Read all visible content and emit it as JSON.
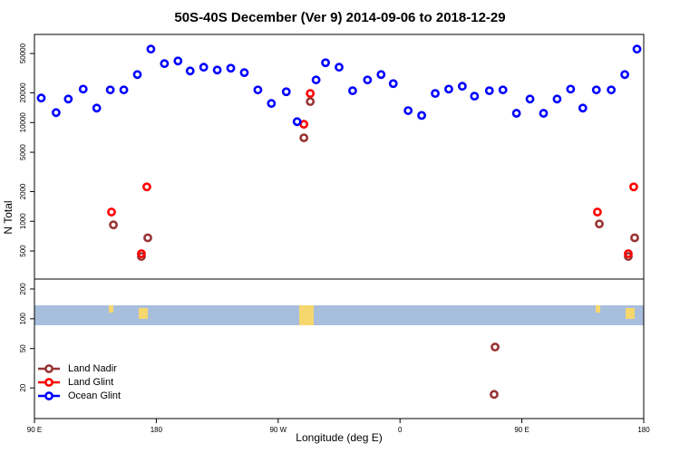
{
  "chart_data": [
    {
      "type": "scatter",
      "title": "50S-40S December (Ver 9)   2014-09-06 to 2018-12-29",
      "ylabel": "N Total",
      "log_y": true,
      "legend": "lower left",
      "xlim": [
        90,
        540
      ],
      "ylim": [
        260,
        78000
      ],
      "yticks": [
        500,
        1000,
        2000,
        5000,
        10000,
        20000,
        50000
      ],
      "series": [
        {
          "name": "Land Nadir",
          "color": "#993333",
          "x": [
            148.3,
            169,
            173.7,
            289,
            293.7,
            507.2,
            528.6,
            533.3
          ],
          "values": [
            920,
            440,
            680,
            7000,
            16300,
            940,
            440,
            680
          ]
        },
        {
          "name": "Land Glint",
          "color": "#ff0000",
          "x": [
            146.9,
            169,
            173,
            289,
            293.7,
            505.8,
            528.6,
            532.6
          ],
          "values": [
            1240,
            470,
            2230,
            9600,
            19700,
            1240,
            470,
            2230
          ]
        },
        {
          "name": "Ocean Glint",
          "color": "#0000ff",
          "x": [
            95,
            106,
            115,
            126,
            136,
            146,
            156,
            166,
            176,
            186,
            196,
            205,
            215,
            225,
            235,
            245,
            255,
            265,
            276,
            284,
            298,
            305,
            315,
            325,
            336,
            346,
            355,
            366,
            376,
            386,
            396,
            406,
            415,
            426,
            436,
            446,
            456,
            466,
            476,
            486,
            495,
            505,
            516,
            526,
            535
          ],
          "values": [
            17700,
            12600,
            17300,
            21800,
            14000,
            21400,
            21400,
            30600,
            55400,
            39500,
            42000,
            33300,
            36300,
            34000,
            35500,
            32000,
            21400,
            15600,
            20500,
            10200,
            27000,
            40300,
            36300,
            21000,
            27000,
            30600,
            24800,
            13200,
            11800,
            19700,
            21800,
            23300,
            18500,
            21000,
            21400,
            12400,
            17300,
            12400,
            17300,
            21800,
            14000,
            21400,
            21400,
            30600,
            55400
          ]
        }
      ]
    },
    {
      "type": "scatter",
      "xlabel": "Longitude (deg E)",
      "log_y": true,
      "xlim": [
        90,
        540
      ],
      "ylim": [
        9.8,
        252
      ],
      "xticks": [
        {
          "value": 90,
          "label": "90 E"
        },
        180,
        {
          "value": 270,
          "label": "90 W"
        },
        {
          "value": 360,
          "label": "0"
        },
        {
          "value": 450,
          "label": "90 E"
        },
        {
          "value": 540,
          "label": "180"
        }
      ],
      "yticks": [
        20,
        50,
        100,
        200
      ],
      "series": [
        {
          "color": "#993333",
          "x": [
            430.2,
            429.5
          ],
          "values": [
            51.8,
            17.2
          ]
        }
      ]
    }
  ]
}
